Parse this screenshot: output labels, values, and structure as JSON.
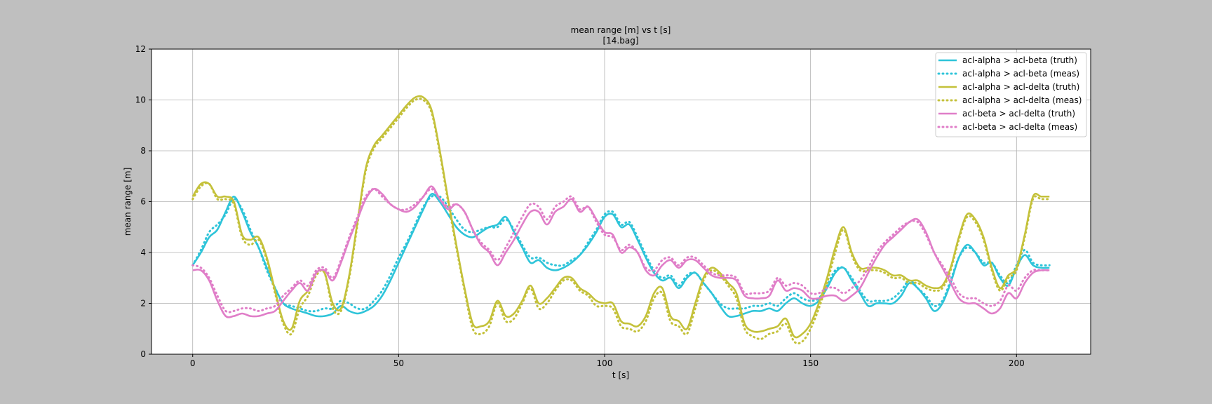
{
  "chart_data": {
    "type": "line",
    "title": "mean range [m] vs t [s]",
    "subtitle": "[14.bag]",
    "xlabel": "t [s]",
    "ylabel": "mean range [m]",
    "xlim": [
      -10,
      218
    ],
    "ylim": [
      0,
      12
    ],
    "xticks": [
      0,
      50,
      100,
      150,
      200
    ],
    "yticks": [
      0,
      2,
      4,
      6,
      8,
      10,
      12
    ],
    "grid": true,
    "legend_position": "top-right",
    "x": [
      0,
      2,
      4,
      6,
      8,
      10,
      12,
      14,
      16,
      18,
      20,
      22,
      24,
      26,
      28,
      30,
      32,
      34,
      36,
      38,
      40,
      42,
      44,
      46,
      48,
      50,
      52,
      54,
      56,
      58,
      60,
      62,
      64,
      66,
      68,
      70,
      72,
      74,
      76,
      78,
      80,
      82,
      84,
      86,
      88,
      90,
      92,
      94,
      96,
      98,
      100,
      102,
      104,
      106,
      108,
      110,
      112,
      114,
      116,
      118,
      120,
      122,
      124,
      126,
      128,
      130,
      132,
      134,
      136,
      138,
      140,
      142,
      144,
      146,
      148,
      150,
      152,
      154,
      156,
      158,
      160,
      162,
      164,
      166,
      168,
      170,
      172,
      174,
      176,
      178,
      180,
      182,
      184,
      186,
      188,
      190,
      192,
      194,
      196,
      198,
      200,
      202,
      204,
      206,
      208
    ],
    "series": [
      {
        "name": "acl-alpha > acl-beta (truth)",
        "color": "#2ec4d9",
        "style": "solid",
        "values": [
          3.5,
          4.0,
          4.6,
          4.9,
          5.6,
          6.2,
          5.6,
          4.8,
          4.2,
          3.4,
          2.6,
          2.0,
          1.8,
          1.7,
          1.6,
          1.5,
          1.5,
          1.6,
          1.9,
          1.7,
          1.6,
          1.7,
          1.9,
          2.3,
          2.9,
          3.6,
          4.3,
          5.0,
          5.7,
          6.3,
          6.0,
          5.5,
          5.0,
          4.7,
          4.6,
          4.8,
          5.0,
          5.1,
          5.4,
          4.8,
          4.2,
          3.6,
          3.7,
          3.4,
          3.3,
          3.4,
          3.6,
          3.9,
          4.3,
          4.8,
          5.4,
          5.5,
          5.0,
          5.1,
          4.5,
          3.8,
          3.2,
          2.9,
          3.0,
          2.6,
          3.0,
          3.2,
          2.8,
          2.4,
          1.9,
          1.5,
          1.5,
          1.6,
          1.7,
          1.7,
          1.8,
          1.7,
          2.0,
          2.2,
          2.0,
          1.9,
          2.1,
          2.6,
          3.2,
          3.4,
          2.9,
          2.4,
          1.9,
          2.0,
          2.0,
          2.0,
          2.3,
          2.8,
          2.6,
          2.2,
          1.7,
          2.0,
          2.8,
          3.8,
          4.3,
          4.0,
          3.5,
          3.6,
          3.0,
          2.7,
          3.4,
          3.9,
          3.5,
          3.4,
          3.4
        ]
      },
      {
        "name": "acl-alpha > acl-beta (meas)",
        "color": "#2ec4d9",
        "style": "dotted",
        "values": [
          3.5,
          4.1,
          4.8,
          5.1,
          5.5,
          6.1,
          5.7,
          4.9,
          4.2,
          3.3,
          2.6,
          2.0,
          1.9,
          1.8,
          1.7,
          1.7,
          1.8,
          1.8,
          2.1,
          2.0,
          1.8,
          1.8,
          2.1,
          2.5,
          3.1,
          3.8,
          4.4,
          5.1,
          5.8,
          6.2,
          6.2,
          5.8,
          5.3,
          4.9,
          4.8,
          4.9,
          5.0,
          5.0,
          5.3,
          4.9,
          4.3,
          3.8,
          3.8,
          3.6,
          3.5,
          3.5,
          3.7,
          3.9,
          4.4,
          4.9,
          5.5,
          5.6,
          5.1,
          5.2,
          4.6,
          3.9,
          3.3,
          3.0,
          3.1,
          2.7,
          3.1,
          3.2,
          2.8,
          2.4,
          2.0,
          1.8,
          1.8,
          1.8,
          1.9,
          1.9,
          2.0,
          1.9,
          2.2,
          2.4,
          2.2,
          2.1,
          2.2,
          2.7,
          3.3,
          3.4,
          3.0,
          2.5,
          2.1,
          2.1,
          2.1,
          2.2,
          2.5,
          2.9,
          2.6,
          2.3,
          1.9,
          2.1,
          2.9,
          3.8,
          4.2,
          4.0,
          3.6,
          3.6,
          3.1,
          2.8,
          3.5,
          4.1,
          3.6,
          3.5,
          3.5
        ]
      },
      {
        "name": "acl-alpha > acl-delta (truth)",
        "color": "#c4c13a",
        "style": "solid",
        "values": [
          6.2,
          6.7,
          6.7,
          6.2,
          6.2,
          6.0,
          4.7,
          4.5,
          4.6,
          3.8,
          2.5,
          1.3,
          1.0,
          2.1,
          2.5,
          3.2,
          3.2,
          2.0,
          1.8,
          3.1,
          5.2,
          7.3,
          8.2,
          8.6,
          9.0,
          9.4,
          9.8,
          10.1,
          10.1,
          9.6,
          8.0,
          6.1,
          4.3,
          2.6,
          1.2,
          1.1,
          1.3,
          2.1,
          1.5,
          1.6,
          2.1,
          2.7,
          2.0,
          2.2,
          2.6,
          3.0,
          3.0,
          2.6,
          2.4,
          2.1,
          2.0,
          2.0,
          1.3,
          1.2,
          1.1,
          1.5,
          2.4,
          2.6,
          1.5,
          1.3,
          1.0,
          2.0,
          3.0,
          3.4,
          3.2,
          2.8,
          2.4,
          1.2,
          0.9,
          0.9,
          1.0,
          1.1,
          1.4,
          0.7,
          0.8,
          1.2,
          2.0,
          3.0,
          4.2,
          5.0,
          4.0,
          3.4,
          3.4,
          3.4,
          3.3,
          3.1,
          3.1,
          2.9,
          2.9,
          2.7,
          2.6,
          2.7,
          3.4,
          4.6,
          5.5,
          5.3,
          4.6,
          3.4,
          2.6,
          3.1,
          3.4,
          4.7,
          6.2,
          6.2,
          6.2
        ]
      },
      {
        "name": "acl-alpha > acl-delta (meas)",
        "color": "#c4c13a",
        "style": "dotted",
        "values": [
          6.1,
          6.6,
          6.7,
          6.1,
          6.1,
          5.9,
          4.6,
          4.3,
          4.5,
          3.7,
          2.4,
          1.2,
          0.8,
          1.8,
          2.3,
          3.1,
          3.2,
          1.8,
          1.7,
          3.0,
          5.1,
          7.2,
          8.1,
          8.5,
          8.9,
          9.3,
          9.7,
          10.0,
          10.0,
          9.5,
          7.9,
          6.0,
          4.2,
          2.5,
          1.0,
          0.8,
          1.1,
          2.0,
          1.3,
          1.4,
          2.0,
          2.6,
          1.8,
          2.0,
          2.5,
          2.9,
          2.9,
          2.5,
          2.3,
          1.9,
          1.9,
          1.8,
          1.1,
          1.0,
          0.9,
          1.3,
          2.2,
          2.4,
          1.3,
          1.1,
          0.8,
          1.8,
          2.9,
          3.3,
          3.1,
          2.7,
          2.2,
          1.0,
          0.7,
          0.6,
          0.8,
          0.9,
          1.2,
          0.5,
          0.5,
          1.0,
          1.8,
          2.8,
          4.0,
          4.9,
          3.9,
          3.3,
          3.3,
          3.3,
          3.2,
          3.0,
          3.0,
          2.8,
          2.8,
          2.6,
          2.5,
          2.6,
          3.3,
          4.5,
          5.4,
          5.2,
          4.5,
          3.3,
          2.5,
          3.0,
          3.3,
          4.6,
          6.1,
          6.1,
          6.1
        ]
      },
      {
        "name": "acl-beta > acl-delta (truth)",
        "color": "#e07ec8",
        "style": "solid",
        "values": [
          3.3,
          3.3,
          2.9,
          2.1,
          1.5,
          1.5,
          1.6,
          1.5,
          1.5,
          1.6,
          1.7,
          2.1,
          2.5,
          2.8,
          2.5,
          3.2,
          3.3,
          2.9,
          3.6,
          4.5,
          5.3,
          6.1,
          6.5,
          6.3,
          5.9,
          5.7,
          5.6,
          5.8,
          6.2,
          6.6,
          6.1,
          5.7,
          5.9,
          5.6,
          4.9,
          4.3,
          4.0,
          3.5,
          4.0,
          4.5,
          5.1,
          5.6,
          5.6,
          5.1,
          5.6,
          5.8,
          6.1,
          5.6,
          5.8,
          5.3,
          4.8,
          4.7,
          4.0,
          4.2,
          4.0,
          3.3,
          3.1,
          3.5,
          3.7,
          3.4,
          3.7,
          3.7,
          3.4,
          3.1,
          3.0,
          3.0,
          2.9,
          2.3,
          2.2,
          2.2,
          2.3,
          2.9,
          2.5,
          2.6,
          2.5,
          2.2,
          2.2,
          2.3,
          2.3,
          2.1,
          2.3,
          2.6,
          3.2,
          3.8,
          4.3,
          4.6,
          4.9,
          5.2,
          5.3,
          4.8,
          4.0,
          3.4,
          2.8,
          2.2,
          2.0,
          2.0,
          1.8,
          1.6,
          1.8,
          2.4,
          2.2,
          2.8,
          3.2,
          3.3,
          3.3
        ]
      },
      {
        "name": "acl-beta > acl-delta (meas)",
        "color": "#e07ec8",
        "style": "dotted",
        "values": [
          3.5,
          3.4,
          3.0,
          2.3,
          1.7,
          1.7,
          1.8,
          1.8,
          1.7,
          1.8,
          1.9,
          2.3,
          2.6,
          2.9,
          2.7,
          3.3,
          3.4,
          3.0,
          3.7,
          4.6,
          5.4,
          6.2,
          6.5,
          6.2,
          5.9,
          5.7,
          5.7,
          5.9,
          6.2,
          6.5,
          6.1,
          5.8,
          5.9,
          5.6,
          4.9,
          4.4,
          4.1,
          3.7,
          4.2,
          4.8,
          5.4,
          5.9,
          5.8,
          5.3,
          5.8,
          6.0,
          6.2,
          5.7,
          5.8,
          5.2,
          4.7,
          4.6,
          4.1,
          4.3,
          4.0,
          3.4,
          3.3,
          3.7,
          3.8,
          3.5,
          3.8,
          3.8,
          3.5,
          3.2,
          3.1,
          3.1,
          3.0,
          2.4,
          2.4,
          2.4,
          2.5,
          3.0,
          2.7,
          2.8,
          2.7,
          2.4,
          2.4,
          2.6,
          2.6,
          2.4,
          2.6,
          2.9,
          3.4,
          4.0,
          4.4,
          4.7,
          5.0,
          5.2,
          5.2,
          4.7,
          4.0,
          3.5,
          3.0,
          2.4,
          2.2,
          2.2,
          2.0,
          1.9,
          2.1,
          2.7,
          2.5,
          3.0,
          3.3,
          3.3,
          3.3
        ]
      }
    ]
  }
}
